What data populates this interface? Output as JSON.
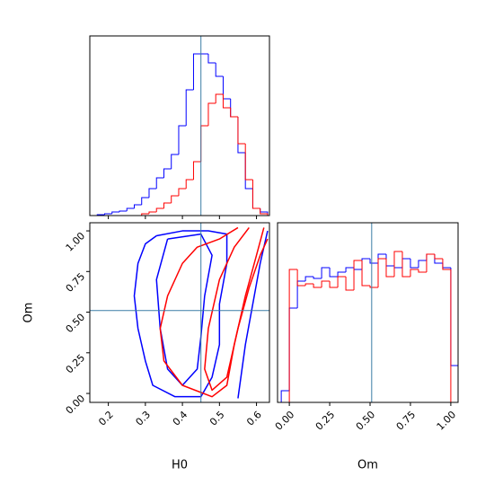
{
  "chart_data": [
    {
      "type": "histogram",
      "xlim": [
        0.15,
        0.635
      ],
      "xticks": [
        0.2,
        0.3,
        0.4,
        0.5,
        0.6
      ],
      "tick_labels": false,
      "ylim": [
        0,
        200
      ],
      "bins": [
        0.15,
        0.17,
        0.19,
        0.21,
        0.23,
        0.25,
        0.27,
        0.29,
        0.31,
        0.33,
        0.35,
        0.37,
        0.39,
        0.41,
        0.43,
        0.45,
        0.47,
        0.49,
        0.51,
        0.53,
        0.55,
        0.57,
        0.59,
        0.61,
        0.63
      ],
      "series": [
        {
          "color": "#0000ff",
          "values": [
            0,
            1,
            2,
            4,
            5,
            8,
            12,
            20,
            30,
            42,
            52,
            68,
            100,
            140,
            180,
            180,
            170,
            155,
            130,
            110,
            70,
            30,
            8,
            4
          ]
        },
        {
          "color": "#ff0000",
          "values": [
            0,
            0,
            0,
            0,
            0,
            0,
            0,
            2,
            4,
            8,
            14,
            22,
            30,
            40,
            60,
            100,
            125,
            135,
            120,
            110,
            80,
            40,
            8,
            2
          ]
        }
      ],
      "vline": 0.45,
      "line_color": "#3a7ca5"
    },
    {
      "type": "contour",
      "xlabel": "H0",
      "ylabel": "Om",
      "xlim": [
        0.15,
        0.635
      ],
      "xticks": [
        0.2,
        0.3,
        0.4,
        0.5,
        0.6
      ],
      "ylim": [
        -0.055,
        1.05
      ],
      "yticks": [
        {
          "value": 0,
          "label": "0.00"
        },
        {
          "value": 0.25,
          "label": "0.25"
        },
        {
          "value": 0.5,
          "label": "0.50"
        },
        {
          "value": 0.75,
          "label": "0.75"
        },
        {
          "value": 1,
          "label": "1.00"
        }
      ],
      "series": [
        {
          "color": "#0000ff",
          "x": [
            0.33,
            0.4,
            0.47,
            0.52,
            0.52,
            0.5,
            0.5,
            0.48,
            0.45,
            0.38,
            0.32,
            0.3,
            0.28,
            0.27,
            0.28,
            0.3,
            0.33
          ],
          "y": [
            0.97,
            1.0,
            1.0,
            0.98,
            0.8,
            0.55,
            0.3,
            0.1,
            -0.02,
            -0.02,
            0.05,
            0.2,
            0.4,
            0.6,
            0.8,
            0.92,
            0.97
          ]
        },
        {
          "color": "#0000ff",
          "x": [
            0.36,
            0.45,
            0.48,
            0.46,
            0.45,
            0.44,
            0.4,
            0.36,
            0.34,
            0.33,
            0.36
          ],
          "y": [
            0.95,
            0.98,
            0.85,
            0.6,
            0.35,
            0.15,
            0.05,
            0.15,
            0.4,
            0.7,
            0.95
          ]
        },
        {
          "color": "#0000ff",
          "x": [
            0.55,
            0.57,
            0.59,
            0.61,
            0.63
          ],
          "y": [
            -0.03,
            0.3,
            0.55,
            0.8,
            1.0
          ]
        },
        {
          "color": "#ff0000",
          "x": [
            0.55,
            0.5,
            0.44,
            0.4,
            0.36,
            0.34,
            0.35,
            0.4,
            0.48,
            0.52,
            0.54,
            0.57,
            0.6,
            0.62
          ],
          "y": [
            1.02,
            0.95,
            0.9,
            0.8,
            0.6,
            0.4,
            0.2,
            0.05,
            -0.02,
            0.05,
            0.3,
            0.6,
            0.85,
            1.02
          ]
        },
        {
          "color": "#ff0000",
          "x": [
            0.58,
            0.54,
            0.5,
            0.47,
            0.46,
            0.48,
            0.52,
            0.55,
            0.58,
            0.61,
            0.63
          ],
          "y": [
            1.02,
            0.9,
            0.7,
            0.4,
            0.15,
            0.02,
            0.1,
            0.4,
            0.65,
            0.85,
            0.95
          ]
        }
      ],
      "vline": 0.45,
      "hline": 0.51,
      "line_color": "#3a7ca5"
    },
    {
      "type": "histogram",
      "xlabel": "Om",
      "xlim": [
        -0.073,
        1.045
      ],
      "xticks": [
        {
          "value": 0,
          "label": "0.00"
        },
        {
          "value": 0.25,
          "label": "0.25"
        },
        {
          "value": 0.5,
          "label": "0.50"
        },
        {
          "value": 0.75,
          "label": "0.75"
        },
        {
          "value": 1,
          "label": "1.00"
        }
      ],
      "ylim": [
        0,
        200
      ],
      "bins": [
        -0.05,
        0,
        0.05,
        0.1,
        0.15,
        0.2,
        0.25,
        0.3,
        0.35,
        0.4,
        0.45,
        0.5,
        0.55,
        0.6,
        0.65,
        0.7,
        0.75,
        0.8,
        0.85,
        0.9,
        0.95,
        1.0,
        1.05
      ],
      "series": [
        {
          "color": "#0000ff",
          "values": [
            13,
            105,
            135,
            140,
            138,
            150,
            140,
            145,
            150,
            148,
            160,
            155,
            165,
            152,
            150,
            160,
            150,
            158,
            165,
            155,
            150,
            41
          ]
        },
        {
          "color": "#ff0000",
          "values": [
            0,
            148,
            130,
            132,
            128,
            135,
            128,
            140,
            125,
            158,
            130,
            128,
            160,
            140,
            168,
            140,
            148,
            145,
            165,
            160,
            148,
            0
          ]
        }
      ],
      "vline": 0.51,
      "line_color": "#3a7ca5"
    }
  ]
}
